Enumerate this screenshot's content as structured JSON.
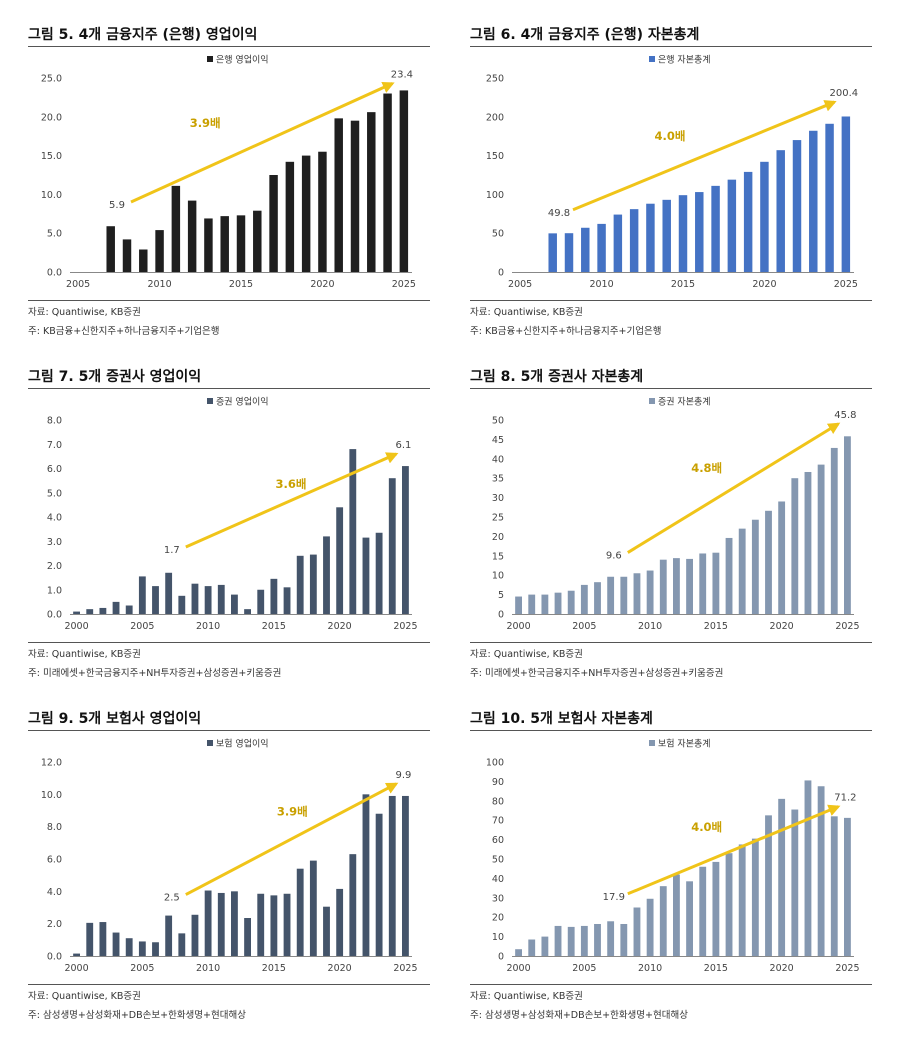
{
  "chart_data": [
    {
      "id": "fig5",
      "type": "bar",
      "title": "그림 5. 4개 금융지주 (은행) 영업이익",
      "legend": "은행 영업이익",
      "legend_position": "top-center",
      "bar_color": "#1f1f1f",
      "x_start": 2005,
      "x_end": 2025,
      "x_ticks": [
        "2005",
        "2010",
        "2015",
        "2020",
        "2025"
      ],
      "ylim": [
        0,
        25
      ],
      "y_ticks": [
        "0.0",
        "5.0",
        "10.0",
        "15.0",
        "20.0",
        "25.0"
      ],
      "years": [
        2007,
        2008,
        2009,
        2010,
        2011,
        2012,
        2013,
        2014,
        2015,
        2016,
        2017,
        2018,
        2019,
        2020,
        2021,
        2022,
        2023,
        2024,
        2025
      ],
      "values": [
        5.9,
        4.2,
        2.9,
        5.4,
        11.1,
        9.2,
        6.9,
        7.2,
        7.3,
        7.9,
        12.5,
        14.2,
        15.0,
        15.5,
        19.8,
        19.5,
        20.6,
        23.0,
        23.4
      ],
      "start_label": "5.9",
      "end_label": "23.4",
      "growth_label": "3.9배",
      "arrow": {
        "from": [
          2008,
          8.5
        ],
        "to": [
          2024.3,
          24.3
        ],
        "label_at": [
          2012.8,
          18.7
        ]
      },
      "source": "자료: Quantiwise, KB증권",
      "note": "주: KB금융+신한지주+하나금융지주+기업은행"
    },
    {
      "id": "fig6",
      "type": "bar",
      "title": "그림 6. 4개 금융지주 (은행) 자본총계",
      "legend": "은행 자본총계",
      "legend_position": "top-center",
      "bar_color": "#4472c4",
      "x_start": 2005,
      "x_end": 2025,
      "x_ticks": [
        "2005",
        "2010",
        "2015",
        "2020",
        "2025"
      ],
      "ylim": [
        0,
        250
      ],
      "y_ticks": [
        "0",
        "50",
        "100",
        "150",
        "200",
        "250"
      ],
      "years": [
        2007,
        2008,
        2009,
        2010,
        2011,
        2012,
        2013,
        2014,
        2015,
        2016,
        2017,
        2018,
        2019,
        2020,
        2021,
        2022,
        2023,
        2024,
        2025
      ],
      "values": [
        49.8,
        50,
        57,
        62,
        74,
        81,
        88,
        93,
        99,
        103,
        111,
        119,
        129,
        142,
        157,
        170,
        182,
        191,
        200.4
      ],
      "start_label": "49.8",
      "end_label": "200.4",
      "growth_label": "4.0배",
      "arrow": {
        "from": [
          2008,
          75
        ],
        "to": [
          2024.3,
          219
        ],
        "label_at": [
          2014.2,
          170
        ]
      },
      "source": "자료: Quantiwise, KB증권",
      "note": "주: KB금융+신한지주+하나금융지주+기업은행"
    },
    {
      "id": "fig7",
      "type": "bar",
      "title": "그림 7. 5개 증권사 영업이익",
      "legend": "증권 영업이익",
      "legend_position": "top-center",
      "bar_color": "#44546a",
      "x_start": 2000,
      "x_end": 2025,
      "x_ticks": [
        "2000",
        "2005",
        "2010",
        "2015",
        "2020",
        "2025"
      ],
      "ylim": [
        0,
        8
      ],
      "y_ticks": [
        "0.0",
        "1.0",
        "2.0",
        "3.0",
        "4.0",
        "5.0",
        "6.0",
        "7.0",
        "8.0"
      ],
      "years": [
        2000,
        2001,
        2002,
        2003,
        2004,
        2005,
        2006,
        2007,
        2008,
        2009,
        2010,
        2011,
        2012,
        2013,
        2014,
        2015,
        2016,
        2017,
        2018,
        2019,
        2020,
        2021,
        2022,
        2023,
        2024,
        2025
      ],
      "values": [
        0.1,
        0.2,
        0.25,
        0.5,
        0.35,
        1.55,
        1.15,
        1.7,
        0.75,
        1.25,
        1.15,
        1.2,
        0.8,
        0.2,
        1.0,
        1.45,
        1.1,
        2.4,
        2.45,
        3.2,
        4.4,
        6.8,
        3.15,
        3.35,
        5.6,
        6.1
      ],
      "start_label": "1.7",
      "end_label": "6.1",
      "growth_label": "3.6배",
      "arrow": {
        "from": [
          2008,
          2.6
        ],
        "to": [
          2024.3,
          6.6
        ],
        "label_at": [
          2016.3,
          5.2
        ]
      },
      "source": "자료: Quantiwise, KB증권",
      "note": "주: 미래에셋+한국금융지주+NH투자증권+삼성증권+키움증권"
    },
    {
      "id": "fig8",
      "type": "bar",
      "title": "그림 8. 5개 증권사 자본총계",
      "legend": "증권 자본총계",
      "legend_position": "top-center",
      "bar_color": "#8497b0",
      "x_start": 2000,
      "x_end": 2025,
      "x_ticks": [
        "2000",
        "2005",
        "2010",
        "2015",
        "2020",
        "2025"
      ],
      "ylim": [
        0,
        50
      ],
      "y_ticks": [
        "0",
        "5",
        "10",
        "15",
        "20",
        "25",
        "30",
        "35",
        "40",
        "45",
        "50"
      ],
      "years": [
        2000,
        2001,
        2002,
        2003,
        2004,
        2005,
        2006,
        2007,
        2008,
        2009,
        2010,
        2011,
        2012,
        2013,
        2014,
        2015,
        2016,
        2017,
        2018,
        2019,
        2020,
        2021,
        2022,
        2023,
        2024,
        2025
      ],
      "values": [
        4.5,
        5.0,
        5.0,
        5.5,
        6.0,
        7.5,
        8.2,
        9.6,
        9.6,
        10.5,
        11.2,
        14.0,
        14.4,
        14.2,
        15.6,
        15.8,
        19.6,
        22.0,
        24.3,
        26.6,
        29.0,
        35.0,
        36.6,
        38.5,
        42.8,
        45.8
      ],
      "start_label": "9.6",
      "end_label": "45.8",
      "growth_label": "4.8배",
      "arrow": {
        "from": [
          2008,
          14.8
        ],
        "to": [
          2024.3,
          49
        ],
        "label_at": [
          2014.3,
          36.6
        ]
      },
      "source": "자료: Quantiwise, KB증권",
      "note": "주: 미래에셋+한국금융지주+NH투자증권+삼성증권+키움증권"
    },
    {
      "id": "fig9",
      "type": "bar",
      "title": "그림 9. 5개 보험사 영업이익",
      "legend": "보험 영업이익",
      "legend_position": "top-center",
      "bar_color": "#44546a",
      "x_start": 2000,
      "x_end": 2025,
      "x_ticks": [
        "2000",
        "2005",
        "2010",
        "2015",
        "2020",
        "2025"
      ],
      "ylim": [
        0,
        12
      ],
      "y_ticks": [
        "0.0",
        "2.0",
        "4.0",
        "6.0",
        "8.0",
        "10.0",
        "12.0"
      ],
      "years": [
        2000,
        2001,
        2002,
        2003,
        2004,
        2005,
        2006,
        2007,
        2008,
        2009,
        2010,
        2011,
        2012,
        2013,
        2014,
        2015,
        2016,
        2017,
        2018,
        2019,
        2020,
        2021,
        2022,
        2023,
        2024,
        2025
      ],
      "values": [
        0.15,
        2.05,
        2.1,
        1.45,
        1.1,
        0.9,
        0.85,
        2.5,
        1.4,
        2.55,
        4.05,
        3.9,
        4.0,
        2.35,
        3.85,
        3.75,
        3.85,
        5.4,
        5.9,
        3.05,
        4.15,
        6.3,
        10.0,
        8.8,
        9.9,
        9.9
      ],
      "start_label": "2.5",
      "end_label": "9.9",
      "growth_label": "3.9배",
      "arrow": {
        "from": [
          2008,
          3.55
        ],
        "to": [
          2024.3,
          10.65
        ],
        "label_at": [
          2016.4,
          8.7
        ]
      },
      "source": "자료: Quantiwise, KB증권",
      "note": "주: 삼성생명+삼성화재+DB손보+한화생명+현대해상"
    },
    {
      "id": "fig10",
      "type": "bar",
      "title": "그림 10. 5개 보험사 자본총계",
      "legend": "보험 자본총계",
      "legend_position": "top-center",
      "bar_color": "#8497b0",
      "x_start": 2000,
      "x_end": 2025,
      "x_ticks": [
        "2000",
        "2005",
        "2010",
        "2015",
        "2020",
        "2025"
      ],
      "ylim": [
        0,
        100
      ],
      "y_ticks": [
        "0",
        "10",
        "20",
        "30",
        "40",
        "50",
        "60",
        "70",
        "80",
        "90",
        "100"
      ],
      "years": [
        2000,
        2001,
        2002,
        2003,
        2004,
        2005,
        2006,
        2007,
        2008,
        2009,
        2010,
        2011,
        2012,
        2013,
        2014,
        2015,
        2016,
        2017,
        2018,
        2019,
        2020,
        2021,
        2022,
        2023,
        2024,
        2025
      ],
      "values": [
        3.5,
        8.5,
        10.0,
        15.5,
        15.0,
        15.5,
        16.5,
        17.9,
        16.5,
        25.0,
        29.5,
        36.0,
        42.0,
        38.5,
        46.0,
        48.5,
        53.0,
        57.5,
        60.5,
        72.5,
        81.0,
        75.5,
        90.5,
        87.5,
        72.0,
        71.2
      ],
      "start_label": "17.9",
      "end_label": "71.2",
      "growth_label": "4.0배",
      "arrow": {
        "from": [
          2008,
          30
        ],
        "to": [
          2024.3,
          77
        ],
        "label_at": [
          2014.3,
          64.5
        ]
      },
      "source": "자료: Quantiwise, KB증권",
      "note": "주: 삼성생명+삼성화재+DB손보+한화생명+현대해상"
    }
  ]
}
